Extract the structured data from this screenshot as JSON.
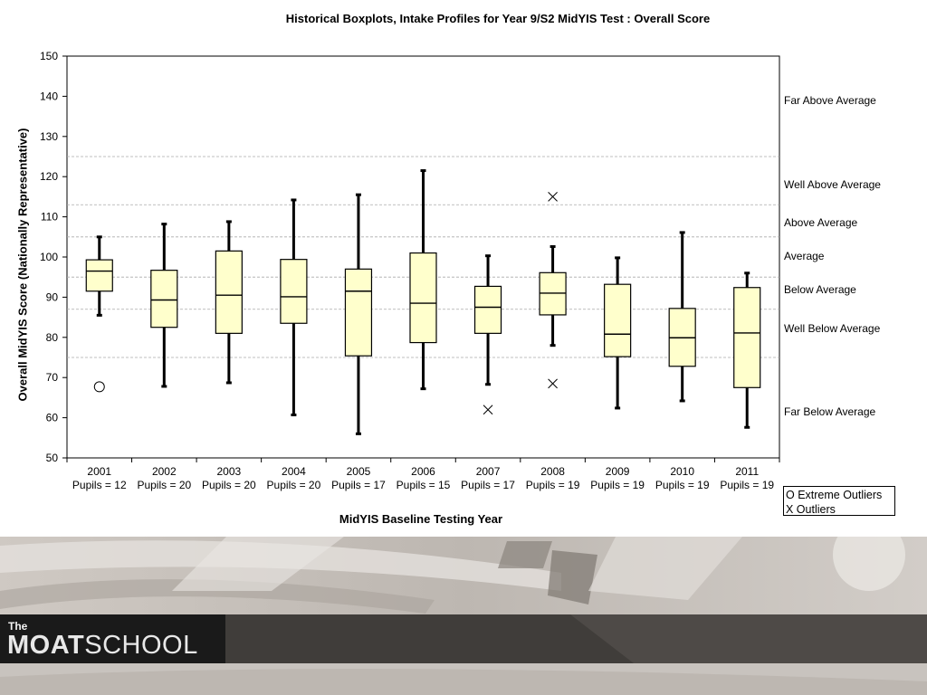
{
  "chart_data": {
    "type": "box",
    "title": "Historical Boxplots, Intake Profiles for Year 9/S2 MidYIS Test : Overall Score",
    "xlabel": "MidYIS Baseline Testing Year",
    "ylabel": "Overall MidYIS Score (Nationally Representative)",
    "ylim": [
      50,
      150
    ],
    "yticks": [
      50,
      60,
      70,
      80,
      90,
      100,
      110,
      120,
      130,
      140,
      150
    ],
    "categories": [
      {
        "year": "2001",
        "pupils": "Pupils = 12",
        "min": 85.5,
        "q1": 91.5,
        "median": 96.5,
        "q3": 99.3,
        "max": 105,
        "outliers": [],
        "extreme_outliers": [
          67.7
        ]
      },
      {
        "year": "2002",
        "pupils": "Pupils = 20",
        "min": 67.8,
        "q1": 82.5,
        "median": 89.3,
        "q3": 96.7,
        "max": 108.2,
        "outliers": [],
        "extreme_outliers": []
      },
      {
        "year": "2003",
        "pupils": "Pupils = 20",
        "min": 68.7,
        "q1": 81,
        "median": 90.5,
        "q3": 101.5,
        "max": 108.8,
        "outliers": [],
        "extreme_outliers": []
      },
      {
        "year": "2004",
        "pupils": "Pupils = 20",
        "min": 60.7,
        "q1": 83.5,
        "median": 90.1,
        "q3": 99.4,
        "max": 114.2,
        "outliers": [],
        "extreme_outliers": []
      },
      {
        "year": "2005",
        "pupils": "Pupils = 17",
        "min": 56,
        "q1": 75.4,
        "median": 91.5,
        "q3": 97,
        "max": 115.5,
        "outliers": [],
        "extreme_outliers": []
      },
      {
        "year": "2006",
        "pupils": "Pupils = 15",
        "min": 67.2,
        "q1": 78.7,
        "median": 88.5,
        "q3": 101,
        "max": 121.5,
        "outliers": [],
        "extreme_outliers": []
      },
      {
        "year": "2007",
        "pupils": "Pupils = 17",
        "min": 68.3,
        "q1": 81,
        "median": 87.5,
        "q3": 92.7,
        "max": 100.3,
        "outliers": [
          62
        ],
        "extreme_outliers": []
      },
      {
        "year": "2008",
        "pupils": "Pupils = 19",
        "min": 78,
        "q1": 85.6,
        "median": 91,
        "q3": 96.1,
        "max": 102.6,
        "outliers": [
          115,
          68.5
        ],
        "extreme_outliers": []
      },
      {
        "year": "2009",
        "pupils": "Pupils = 19",
        "min": 62.4,
        "q1": 75.2,
        "median": 80.8,
        "q3": 93.2,
        "max": 99.8,
        "outliers": [],
        "extreme_outliers": []
      },
      {
        "year": "2010",
        "pupils": "Pupils = 19",
        "min": 64.2,
        "q1": 72.8,
        "median": 79.9,
        "q3": 87.2,
        "max": 106.1,
        "outliers": [],
        "extreme_outliers": []
      },
      {
        "year": "2011",
        "pupils": "Pupils = 19",
        "min": 57.6,
        "q1": 67.5,
        "median": 81.1,
        "q3": 92.4,
        "max": 96,
        "outliers": [],
        "extreme_outliers": []
      }
    ],
    "reference_lines": [
      75,
      87,
      95,
      105,
      113,
      125
    ],
    "bands": [
      {
        "label": "Far Above Average",
        "value": 139
      },
      {
        "label": "Well Above Average",
        "value": 118
      },
      {
        "label": "Above Average",
        "value": 108.5
      },
      {
        "label": "Average",
        "value": 100.2
      },
      {
        "label": "Below Average",
        "value": 91.8
      },
      {
        "label": "Well Below Average",
        "value": 82.3
      },
      {
        "label": "Far Below Average",
        "value": 61.5
      }
    ],
    "legend": {
      "extreme": "O Extreme Outliers",
      "outlier": "X Outliers"
    },
    "colors": {
      "box_fill": "#ffffcc",
      "box_stroke": "#000000",
      "reference_line": "#aaaaaa"
    }
  },
  "branding": {
    "logo_small": "The",
    "logo_bold": "MOAT",
    "logo_light": "SCHOOL"
  }
}
